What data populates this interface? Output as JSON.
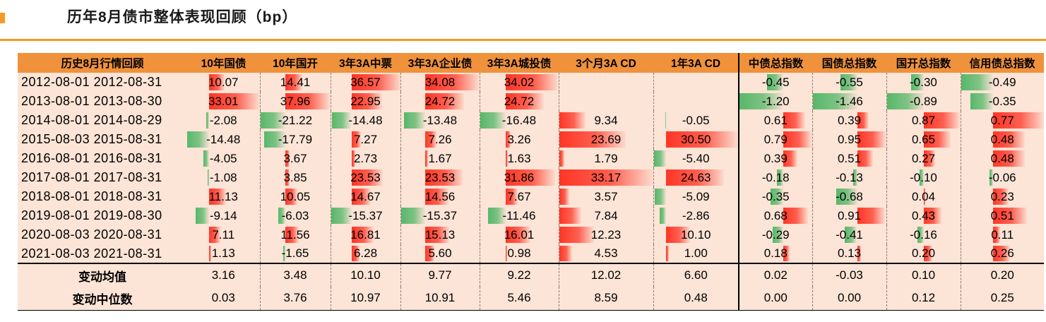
{
  "colors": {
    "accent_rule": "#F59A23",
    "header_bg": "#F0923B",
    "table_bg": "#FCE4D6",
    "bar_positive": "#FF2414",
    "bar_negative": "#46B35F",
    "divider_black": "#000000"
  },
  "chart_data": {
    "type": "table",
    "title": "历年8月债市整体表现回顾（bp）",
    "style_note": "excel-gradient-data-bars, red=positive, green=negative",
    "headers": [
      "历史8月行情回顾",
      "10年国债",
      "10年国开",
      "3年3A中票",
      "3年3A企业债",
      "3年3A城投债",
      "3个月3A CD",
      "1年3A CD",
      "中债总指数",
      "国债总指数",
      "国开总指数",
      "信用债总指数"
    ],
    "rows": [
      {
        "period": "2012-08-01 2012-08-31",
        "values": [
          10.07,
          14.41,
          36.57,
          34.08,
          34.02,
          null,
          null,
          -0.45,
          -0.55,
          -0.3,
          -0.49
        ]
      },
      {
        "period": "2013-08-01 2013-08-30",
        "values": [
          33.01,
          37.96,
          22.95,
          24.72,
          24.72,
          null,
          null,
          -1.2,
          -1.46,
          -0.89,
          -0.35
        ]
      },
      {
        "period": "2014-08-01 2014-08-29",
        "values": [
          -2.08,
          -21.22,
          -14.48,
          -13.48,
          -16.48,
          9.34,
          -0.05,
          0.61,
          0.39,
          0.87,
          0.77
        ]
      },
      {
        "period": "2015-08-03 2015-08-31",
        "values": [
          -14.48,
          -17.79,
          7.27,
          7.26,
          3.26,
          23.69,
          30.5,
          0.79,
          0.95,
          0.65,
          0.48
        ]
      },
      {
        "period": "2016-08-01 2016-08-31",
        "values": [
          -4.05,
          3.67,
          2.73,
          1.67,
          1.63,
          1.79,
          -5.4,
          0.39,
          0.51,
          0.27,
          0.48
        ]
      },
      {
        "period": "2017-08-01 2017-08-31",
        "values": [
          -1.08,
          3.85,
          23.53,
          23.53,
          31.86,
          33.17,
          24.63,
          -0.18,
          -0.13,
          -0.1,
          -0.06
        ]
      },
      {
        "period": "2018-08-01 2018-08-31",
        "values": [
          11.13,
          10.05,
          14.67,
          14.56,
          7.67,
          3.57,
          -5.09,
          -0.35,
          -0.68,
          0.04,
          0.23
        ]
      },
      {
        "period": "2019-08-01 2019-08-30",
        "values": [
          -9.14,
          -6.03,
          -15.37,
          -15.37,
          -11.46,
          7.84,
          -2.86,
          0.68,
          0.91,
          0.43,
          0.51
        ]
      },
      {
        "period": "2020-08-03 2020-08-31",
        "values": [
          7.11,
          11.56,
          16.81,
          15.13,
          16.01,
          12.23,
          10.1,
          -0.29,
          -0.41,
          -0.16,
          0.11
        ]
      },
      {
        "period": "2021-08-03 2021-08-31",
        "values": [
          1.13,
          -1.65,
          6.28,
          5.6,
          0.98,
          4.53,
          1.0,
          0.18,
          0.13,
          0.2,
          0.26
        ]
      }
    ],
    "summary_rows": [
      {
        "label": "变动均值",
        "values": [
          3.16,
          3.48,
          10.1,
          9.77,
          9.22,
          12.02,
          6.6,
          0.02,
          -0.03,
          0.1,
          0.2
        ]
      },
      {
        "label": "变动中位数",
        "values": [
          0.03,
          3.76,
          10.97,
          10.91,
          5.46,
          8.59,
          0.48,
          0.0,
          0.0,
          0.12,
          0.25
        ]
      }
    ]
  }
}
